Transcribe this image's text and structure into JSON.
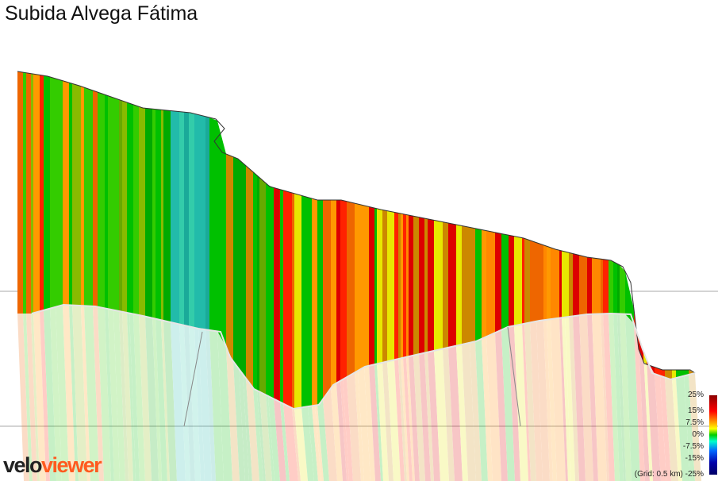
{
  "title": "Subida Alvega Fátima",
  "chart_data": {
    "type": "area",
    "title": "Subida Alvega Fátima",
    "description_units": {
      "elevation": "relative",
      "gradient": "%"
    },
    "grid_label": "(Grid: 0.5 km)",
    "grid": true,
    "gradient_scale": {
      "labels": [
        "25%",
        "15%",
        "7.5%",
        "0%",
        "-7.5%",
        "-15%",
        "-25%"
      ],
      "values": [
        25,
        15,
        7.5,
        0,
        -7.5,
        -15,
        -25
      ]
    },
    "colors": {
      "gradient_high": "#8b0000",
      "gradient_red": "#ff0000",
      "gradient_orange": "#ffaa00",
      "gradient_yellow": "#ffff00",
      "gradient_green": "#00cc00",
      "gradient_cyan": "#00ffcc",
      "gradient_blue": "#0000aa"
    }
  },
  "logo": {
    "part1": "velo",
    "part2": "viewer"
  }
}
